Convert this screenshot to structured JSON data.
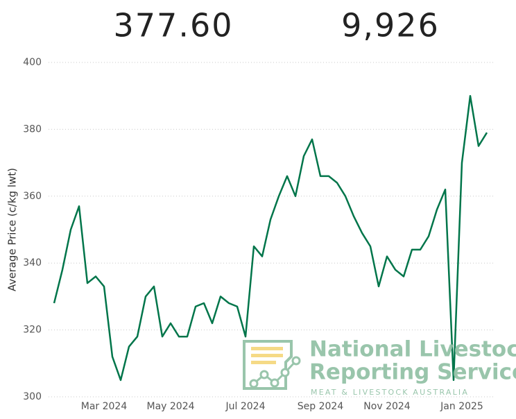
{
  "kpis": [
    "377.60",
    "9,926"
  ],
  "chart_data": {
    "type": "line",
    "y_label": "Average Price (c/kg lwt)",
    "categories": [
      null,
      null,
      null,
      null,
      null,
      null,
      "Mar 2024",
      null,
      null,
      null,
      null,
      null,
      null,
      null,
      "May 2024",
      null,
      null,
      null,
      null,
      null,
      null,
      null,
      null,
      "Jul 2024",
      null,
      null,
      null,
      null,
      null,
      null,
      null,
      null,
      "Sep 2024",
      null,
      null,
      null,
      null,
      null,
      null,
      null,
      "Nov 2024",
      null,
      null,
      null,
      null,
      null,
      null,
      null,
      null,
      "Jan 2025",
      null,
      null,
      null
    ],
    "series": [
      {
        "color": "#00754a",
        "values": [
          328,
          338,
          350,
          357,
          334,
          336,
          333,
          312,
          305,
          315,
          318,
          330,
          333,
          318,
          322,
          318,
          318,
          327,
          328,
          322,
          330,
          328,
          327,
          318,
          345,
          342,
          353,
          360,
          366,
          360,
          372,
          377,
          366,
          366,
          364,
          360,
          354,
          349,
          345,
          333,
          342,
          338,
          336,
          344,
          344,
          348,
          356,
          362,
          305,
          370,
          390,
          375,
          379
        ]
      }
    ],
    "ylim": [
      300,
      400
    ],
    "yticks": [
      300,
      320,
      340,
      360,
      380,
      400
    ],
    "grid": true
  },
  "logo": {
    "line1": "National Livestock",
    "line2": "Reporting Service",
    "tagline": "MEAT & LIVESTOCK AUSTRALIA"
  }
}
